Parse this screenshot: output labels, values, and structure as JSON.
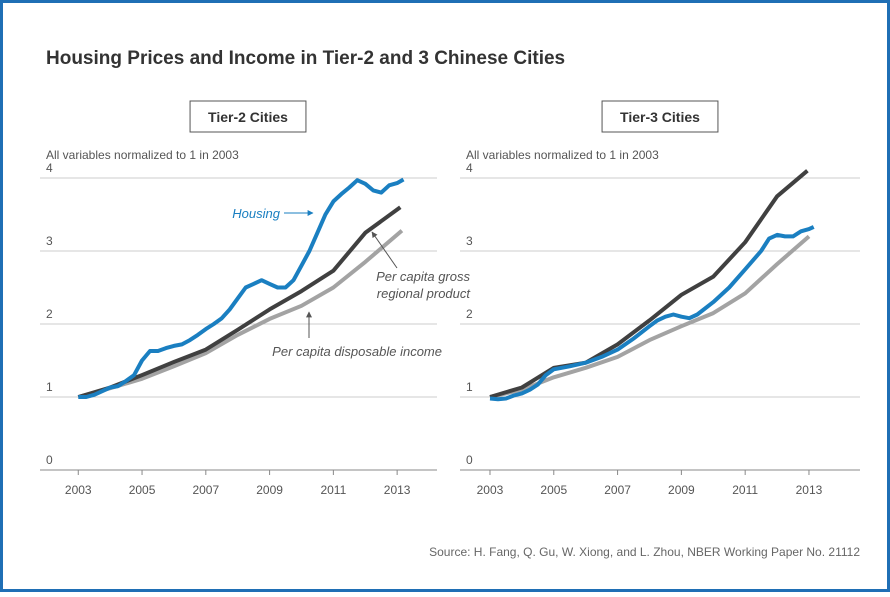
{
  "title": "Housing Prices and Income in Tier-2 and 3 Chinese Cities",
  "source": "Source: H. Fang, Q. Gu, W. Xiong, and L. Zhou, NBER Working Paper No. 21112",
  "chart_data": [
    {
      "type": "line",
      "title": "Tier-2 Cities",
      "subtitle": "All variables normalized to 1 in 2003",
      "xlim": [
        2001.8,
        2014.25
      ],
      "xticks": [
        2003,
        2005,
        2007,
        2009,
        2011,
        2013
      ],
      "ylim": [
        0,
        4
      ],
      "yticks": [
        0,
        1,
        2,
        3,
        4
      ],
      "grid": true,
      "series": [
        {
          "color": "#a3a3a3",
          "x": [
            2003,
            2004,
            2005,
            2006,
            2007,
            2008,
            2009,
            2010,
            2011,
            2012,
            2013.15
          ],
          "values": [
            1,
            1.12,
            1.25,
            1.42,
            1.6,
            1.85,
            2.07,
            2.25,
            2.5,
            2.85,
            3.28
          ]
        },
        {
          "color": "#404040",
          "x": [
            2003,
            2004,
            2005,
            2006,
            2007,
            2008,
            2009,
            2010,
            2011,
            2012,
            2013.1
          ],
          "values": [
            1,
            1.13,
            1.3,
            1.48,
            1.65,
            1.92,
            2.2,
            2.45,
            2.73,
            3.25,
            3.6
          ]
        },
        {
          "color": "#1a7fc1",
          "x": [
            2003,
            2003.25,
            2003.5,
            2003.75,
            2004,
            2004.25,
            2004.5,
            2004.75,
            2005,
            2005.25,
            2005.5,
            2005.75,
            2006,
            2006.25,
            2006.5,
            2006.75,
            2007,
            2007.25,
            2007.5,
            2007.75,
            2008,
            2008.25,
            2008.5,
            2008.75,
            2009,
            2009.25,
            2009.5,
            2009.75,
            2010,
            2010.25,
            2010.5,
            2010.75,
            2011,
            2011.25,
            2011.5,
            2011.75,
            2012,
            2012.25,
            2012.5,
            2012.75,
            2013,
            2013.2
          ],
          "values": [
            1,
            1,
            1.03,
            1.08,
            1.13,
            1.15,
            1.22,
            1.3,
            1.5,
            1.63,
            1.63,
            1.67,
            1.7,
            1.72,
            1.78,
            1.85,
            1.93,
            2,
            2.08,
            2.2,
            2.35,
            2.5,
            2.55,
            2.6,
            2.55,
            2.5,
            2.5,
            2.6,
            2.8,
            3,
            3.25,
            3.5,
            3.68,
            3.78,
            3.87,
            3.97,
            3.92,
            3.83,
            3.8,
            3.9,
            3.93,
            3.98
          ]
        }
      ],
      "annotations": [
        {
          "text": "Housing"
        },
        {
          "lines": [
            "Per capita gross",
            "regional product"
          ]
        },
        {
          "text": "Per capita disposable income"
        }
      ]
    },
    {
      "type": "line",
      "title": "Tier-3 Cities",
      "subtitle": "All variables normalized to 1 in 2003",
      "xlim": [
        2002.06,
        2014.6
      ],
      "xticks": [
        2003,
        2005,
        2007,
        2009,
        2011,
        2013
      ],
      "ylim": [
        0,
        4
      ],
      "yticks": [
        0,
        1,
        2,
        3,
        4
      ],
      "grid": true,
      "series": [
        {
          "color": "#a3a3a3",
          "x": [
            2003,
            2004,
            2005,
            2006,
            2007,
            2008,
            2009,
            2010,
            2011,
            2012,
            2013
          ],
          "values": [
            1,
            1.1,
            1.27,
            1.4,
            1.55,
            1.78,
            1.97,
            2.15,
            2.42,
            2.82,
            3.2
          ]
        },
        {
          "color": "#404040",
          "x": [
            2003,
            2004,
            2005,
            2006,
            2007,
            2008,
            2009,
            2010,
            2011,
            2012,
            2012.95
          ],
          "values": [
            1,
            1.13,
            1.4,
            1.47,
            1.72,
            2.05,
            2.4,
            2.65,
            3.12,
            3.75,
            4.1
          ]
        },
        {
          "color": "#1a7fc1",
          "x": [
            2003,
            2003.25,
            2003.5,
            2003.75,
            2004,
            2004.25,
            2004.5,
            2004.75,
            2005,
            2005.5,
            2006,
            2006.5,
            2007,
            2007.5,
            2008,
            2008.25,
            2008.5,
            2008.75,
            2009,
            2009.25,
            2009.5,
            2010,
            2010.5,
            2011,
            2011.5,
            2011.75,
            2012,
            2012.25,
            2012.5,
            2012.75,
            2013,
            2013.15
          ],
          "values": [
            0.98,
            0.97,
            0.98,
            1.02,
            1.05,
            1.1,
            1.17,
            1.3,
            1.38,
            1.42,
            1.47,
            1.55,
            1.65,
            1.8,
            1.97,
            2.05,
            2.1,
            2.13,
            2.1,
            2.08,
            2.13,
            2.3,
            2.5,
            2.75,
            3,
            3.17,
            3.22,
            3.2,
            3.2,
            3.27,
            3.3,
            3.33
          ]
        }
      ]
    }
  ]
}
